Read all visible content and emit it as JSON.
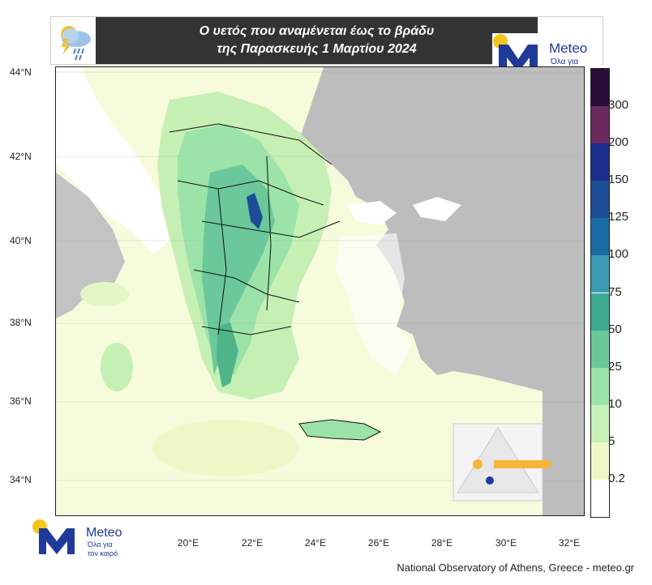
{
  "title": {
    "line1": "Ο υετός που αναμένεται έως το βράδυ",
    "line2": "της Παρασκευής 1 Μαρτίου 2024"
  },
  "logo": {
    "brand": "Meteo",
    "tagline_1": "Όλα για",
    "tagline_2": "τον καιρό"
  },
  "icons": [
    "rain-cloud-icon",
    "meteo-logo-icon",
    "risk-triangle-icon"
  ],
  "axes": {
    "latitude_labels": [
      "44°N",
      "42°N",
      "40°N",
      "38°N",
      "36°N",
      "34°N"
    ],
    "longitude_labels": [
      "20°E",
      "22°E",
      "24°E",
      "26°E",
      "28°E",
      "30°E",
      "32°E"
    ]
  },
  "colorbar": {
    "labels": [
      "300",
      "200",
      "150",
      "125",
      "100",
      "75",
      "50",
      "25",
      "10",
      "5",
      "0.2"
    ],
    "colors": [
      "#2a0c3a",
      "#6a2a5e",
      "#1b2e8e",
      "#1d4d96",
      "#1a6aa6",
      "#3a9bb3",
      "#3cab91",
      "#6ac89a",
      "#9be3a9",
      "#c8f0b9",
      "#eef8c6",
      "#ffffff"
    ]
  },
  "colors": {
    "land_no_rain": "#bdbdbd",
    "sea_outside": "#ffffff",
    "light_rain": "#eaf6c4",
    "moderate_rain": "#9be3a9",
    "heavy_rain": "#5cbf93"
  },
  "footer": "National Observatory of Athens, Greece - meteo.gr"
}
